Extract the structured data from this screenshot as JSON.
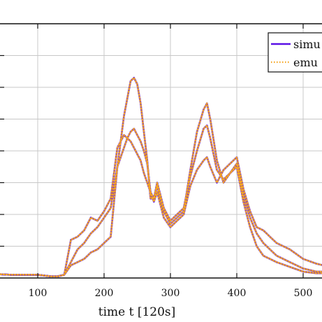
{
  "chart_data": {
    "type": "line",
    "xlabel": "time t [120s]",
    "xlim": [
      0,
      530
    ],
    "ylim": [
      0,
      8
    ],
    "xticks": [
      100,
      200,
      300,
      400,
      500
    ],
    "grid": true,
    "legend_position": "top-right",
    "series": [
      {
        "name": "simu",
        "color": "#5a10e6",
        "style": "solid",
        "curves": [
          {
            "x": [
              0,
              10,
              20,
              40,
              60,
              80,
              100,
              120,
              130,
              140,
              150,
              160,
              170,
              180,
              190,
              200,
              210,
              220,
              230,
              240,
              245,
              250,
              255,
              260,
              265,
              270,
              275,
              280,
              290,
              300,
              310,
              320,
              330,
              340,
              350,
              355,
              360,
              370,
              380,
              390,
              400,
              410,
              420,
              430,
              440,
              450,
              460,
              480,
              500,
              520,
              530
            ],
            "y": [
              0.2,
              0.3,
              0.2,
              0.12,
              0.1,
              0.1,
              0.1,
              0.05,
              0.05,
              0.1,
              0.4,
              0.5,
              0.6,
              0.8,
              0.9,
              1.1,
              1.3,
              3.5,
              5.1,
              6.2,
              6.3,
              6.1,
              5.5,
              4.6,
              3.7,
              2.5,
              2.5,
              2.9,
              2.1,
              1.7,
              1.9,
              2.1,
              3.4,
              4.6,
              5.3,
              5.5,
              5.0,
              3.7,
              3.0,
              3.3,
              3.5,
              2.4,
              1.6,
              1.0,
              0.7,
              0.6,
              0.5,
              0.35,
              0.2,
              0.15,
              0.15
            ]
          },
          {
            "x": [
              0,
              10,
              20,
              40,
              60,
              80,
              100,
              120,
              130,
              140,
              150,
              160,
              170,
              180,
              190,
              200,
              210,
              220,
              230,
              235,
              240,
              245,
              250,
              255,
              260,
              265,
              270,
              275,
              280,
              290,
              300,
              310,
              320,
              330,
              340,
              350,
              355,
              360,
              370,
              380,
              390,
              400,
              410,
              420,
              430,
              440,
              450,
              460,
              480,
              500,
              520,
              530
            ],
            "y": [
              0.2,
              0.3,
              0.2,
              0.12,
              0.1,
              0.1,
              0.1,
              0.05,
              0.05,
              0.1,
              0.5,
              0.9,
              1.1,
              1.4,
              1.6,
              1.9,
              2.2,
              3.5,
              4.1,
              4.4,
              4.6,
              4.7,
              4.5,
              4.3,
              4.0,
              3.6,
              2.7,
              2.5,
              3.0,
              2.2,
              1.8,
              2.0,
              2.2,
              3.2,
              4.0,
              4.7,
              4.8,
              4.4,
              3.4,
              3.1,
              3.3,
              3.6,
              2.6,
              1.9,
              1.4,
              1.1,
              0.9,
              0.7,
              0.5,
              0.3,
              0.2,
              0.2
            ]
          },
          {
            "x": [
              0,
              10,
              20,
              40,
              60,
              80,
              100,
              120,
              130,
              140,
              150,
              160,
              170,
              180,
              190,
              200,
              210,
              220,
              230,
              240,
              245,
              250,
              255,
              260,
              265,
              270,
              275,
              280,
              290,
              300,
              310,
              320,
              330,
              340,
              350,
              355,
              360,
              370,
              380,
              390,
              400,
              410,
              420,
              430,
              440,
              450,
              460,
              480,
              500,
              520,
              530
            ],
            "y": [
              0.2,
              0.3,
              0.2,
              0.12,
              0.1,
              0.1,
              0.1,
              0.05,
              0.05,
              0.1,
              1.2,
              1.3,
              1.5,
              1.9,
              1.8,
              2.1,
              2.5,
              4.1,
              4.5,
              4.3,
              4.1,
              3.9,
              3.7,
              3.3,
              3.0,
              2.7,
              2.4,
              2.7,
              1.9,
              1.6,
              1.8,
              2.0,
              2.9,
              3.4,
              3.7,
              3.8,
              3.5,
              3.0,
              3.4,
              3.6,
              3.8,
              2.8,
              2.1,
              1.6,
              1.5,
              1.3,
              1.1,
              0.9,
              0.6,
              0.45,
              0.4
            ]
          }
        ]
      },
      {
        "name": "emu",
        "color": "#f5a623",
        "style": "dotted",
        "curves": [
          {
            "x": [
              0,
              10,
              20,
              40,
              60,
              80,
              100,
              120,
              130,
              140,
              150,
              160,
              170,
              180,
              190,
              200,
              210,
              220,
              230,
              240,
              245,
              250,
              255,
              260,
              265,
              270,
              275,
              280,
              290,
              300,
              310,
              320,
              330,
              340,
              350,
              355,
              360,
              370,
              380,
              390,
              400,
              410,
              420,
              430,
              440,
              450,
              460,
              480,
              500,
              520,
              530
            ],
            "y": [
              0.2,
              0.3,
              0.2,
              0.12,
              0.1,
              0.1,
              0.1,
              0.05,
              0.05,
              0.1,
              0.4,
              0.5,
              0.6,
              0.8,
              0.9,
              1.1,
              1.3,
              3.5,
              5.1,
              6.2,
              6.3,
              6.1,
              5.5,
              4.6,
              3.7,
              2.5,
              2.5,
              2.9,
              2.1,
              1.7,
              1.9,
              2.1,
              3.4,
              4.6,
              5.3,
              5.5,
              5.0,
              3.7,
              3.0,
              3.3,
              3.5,
              2.4,
              1.6,
              1.0,
              0.7,
              0.6,
              0.5,
              0.35,
              0.2,
              0.15,
              0.15
            ]
          },
          {
            "x": [
              0,
              10,
              20,
              40,
              60,
              80,
              100,
              120,
              130,
              140,
              150,
              160,
              170,
              180,
              190,
              200,
              210,
              220,
              230,
              235,
              240,
              245,
              250,
              255,
              260,
              265,
              270,
              275,
              280,
              290,
              300,
              310,
              320,
              330,
              340,
              350,
              355,
              360,
              370,
              380,
              390,
              400,
              410,
              420,
              430,
              440,
              450,
              460,
              480,
              500,
              520,
              530
            ],
            "y": [
              0.2,
              0.3,
              0.2,
              0.12,
              0.1,
              0.1,
              0.1,
              0.05,
              0.05,
              0.1,
              0.5,
              0.9,
              1.1,
              1.4,
              1.6,
              1.9,
              2.2,
              3.5,
              4.1,
              4.4,
              4.6,
              4.7,
              4.5,
              4.3,
              4.0,
              3.6,
              2.7,
              2.5,
              3.0,
              2.2,
              1.8,
              2.0,
              2.2,
              3.2,
              4.0,
              4.7,
              4.8,
              4.4,
              3.4,
              3.1,
              3.3,
              3.6,
              2.6,
              1.9,
              1.4,
              1.1,
              0.9,
              0.7,
              0.5,
              0.3,
              0.2,
              0.2
            ]
          },
          {
            "x": [
              0,
              10,
              20,
              40,
              60,
              80,
              100,
              120,
              130,
              140,
              150,
              160,
              170,
              180,
              190,
              200,
              210,
              220,
              230,
              240,
              245,
              250,
              255,
              260,
              265,
              270,
              275,
              280,
              290,
              300,
              310,
              320,
              330,
              340,
              350,
              355,
              360,
              370,
              380,
              390,
              400,
              410,
              420,
              430,
              440,
              450,
              460,
              480,
              500,
              520,
              530
            ],
            "y": [
              0.2,
              0.3,
              0.2,
              0.12,
              0.1,
              0.1,
              0.1,
              0.05,
              0.05,
              0.1,
              1.2,
              1.3,
              1.5,
              1.9,
              1.8,
              2.1,
              2.5,
              4.1,
              4.5,
              4.3,
              4.1,
              3.9,
              3.7,
              3.3,
              3.0,
              2.7,
              2.4,
              2.7,
              1.9,
              1.6,
              1.8,
              2.0,
              2.9,
              3.4,
              3.7,
              3.8,
              3.5,
              3.0,
              3.4,
              3.6,
              3.8,
              2.8,
              2.1,
              1.6,
              1.5,
              1.3,
              1.1,
              0.9,
              0.6,
              0.45,
              0.4
            ]
          }
        ]
      }
    ]
  }
}
